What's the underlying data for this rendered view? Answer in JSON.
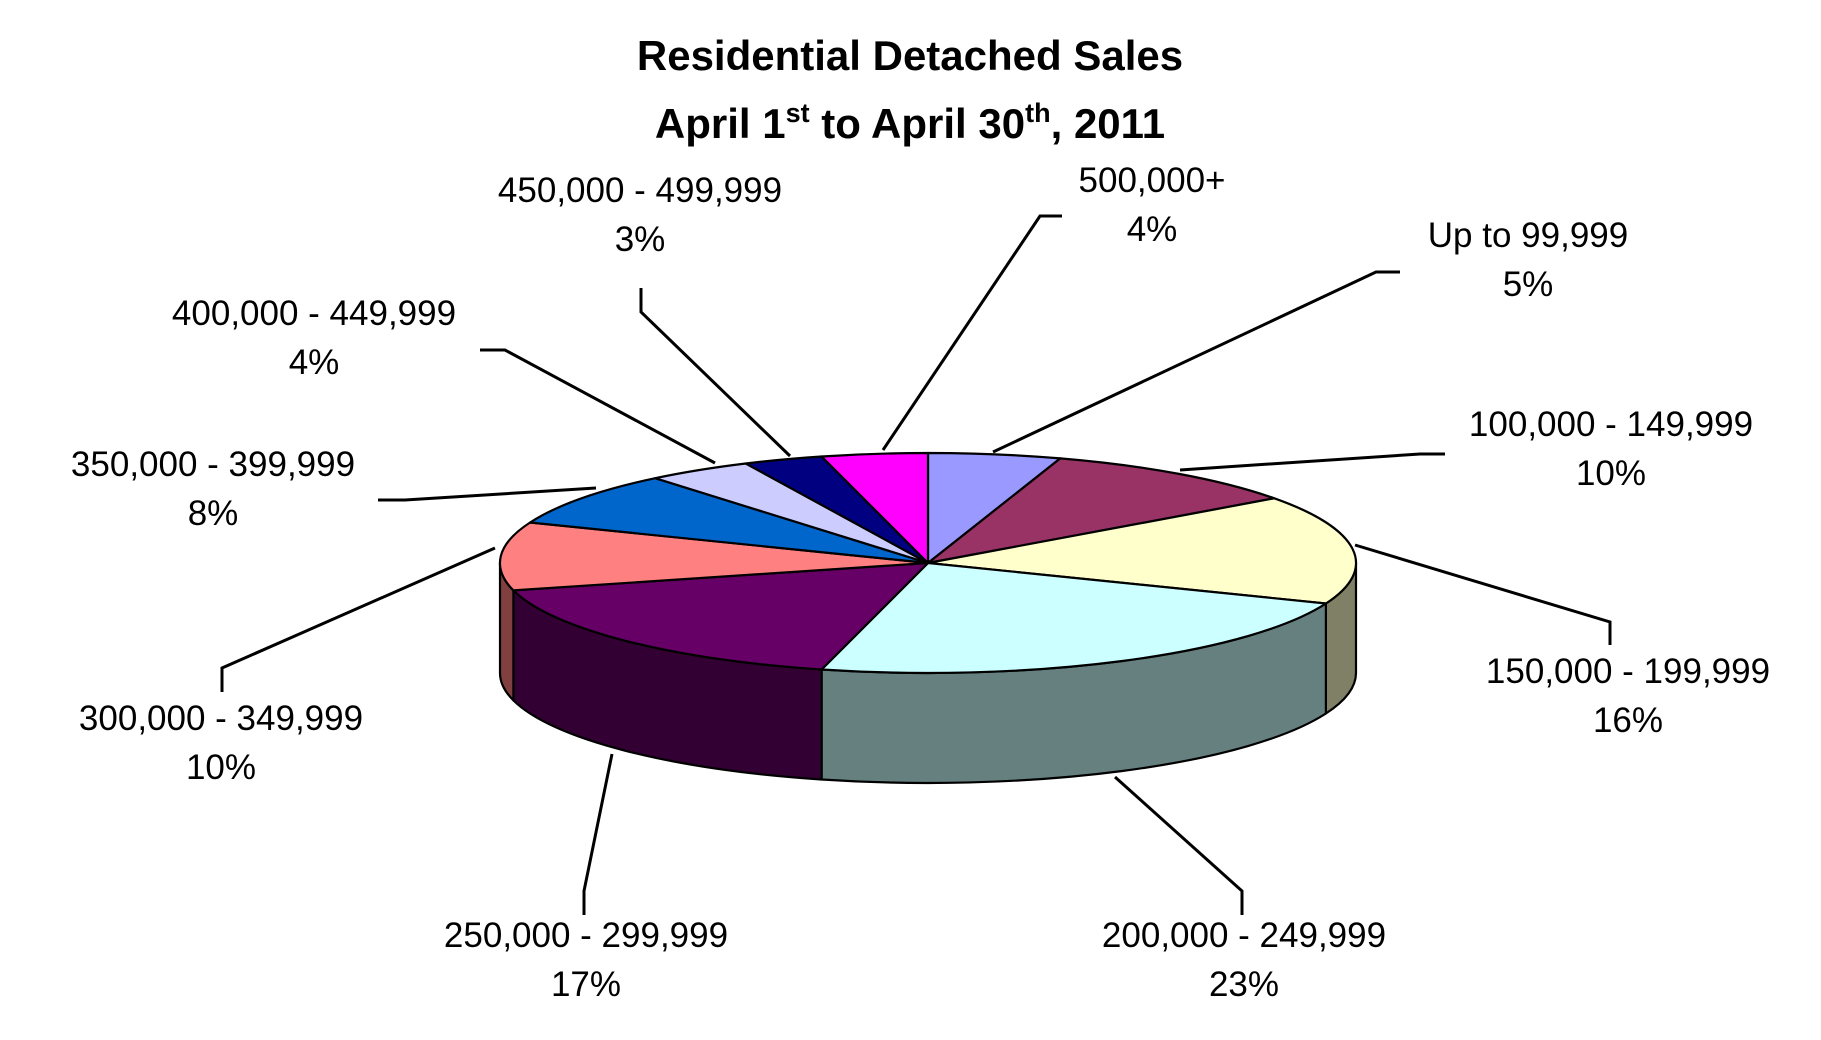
{
  "chart_data": {
    "type": "pie",
    "title": "Residential Detached Sales",
    "subtitle": {
      "prefix": "April 1",
      "sup1": "st",
      "middle": " to April 30",
      "sup2": "th",
      "suffix": ", 2011"
    },
    "legend": "none",
    "slices": [
      {
        "label": "Up to 99,999",
        "value": 5,
        "value_label": "5%",
        "color": "#9999FF",
        "side_color": "#6B6BB2"
      },
      {
        "label": "100,000 - 149,999",
        "value": 10,
        "value_label": "10%",
        "color": "#993366",
        "side_color": "#6B2447"
      },
      {
        "label": "150,000 - 199,999",
        "value": 16,
        "value_label": "16%",
        "color": "#FFFFCC",
        "side_color": "#808066"
      },
      {
        "label": "200,000 - 249,999",
        "value": 23,
        "value_label": "23%",
        "color": "#CCFFFF",
        "side_color": "#668080"
      },
      {
        "label": "250,000 - 299,999",
        "value": 17,
        "value_label": "17%",
        "color": "#660066",
        "side_color": "#330033"
      },
      {
        "label": "300,000 - 349,999",
        "value": 10,
        "value_label": "10%",
        "color": "#FF8080",
        "side_color": "#804040"
      },
      {
        "label": "350,000 - 399,999",
        "value": 8,
        "value_label": "8%",
        "color": "#0066CC",
        "side_color": "#003366"
      },
      {
        "label": "400,000 - 449,999",
        "value": 4,
        "value_label": "4%",
        "color": "#CCCCFF",
        "side_color": "#666680"
      },
      {
        "label": "450,000 - 499,999",
        "value": 3,
        "value_label": "3%",
        "color": "#000080",
        "side_color": "#000040"
      },
      {
        "label": "500,000+",
        "value": 4,
        "value_label": "4%",
        "color": "#FF00FF",
        "side_color": "#800080"
      }
    ]
  }
}
